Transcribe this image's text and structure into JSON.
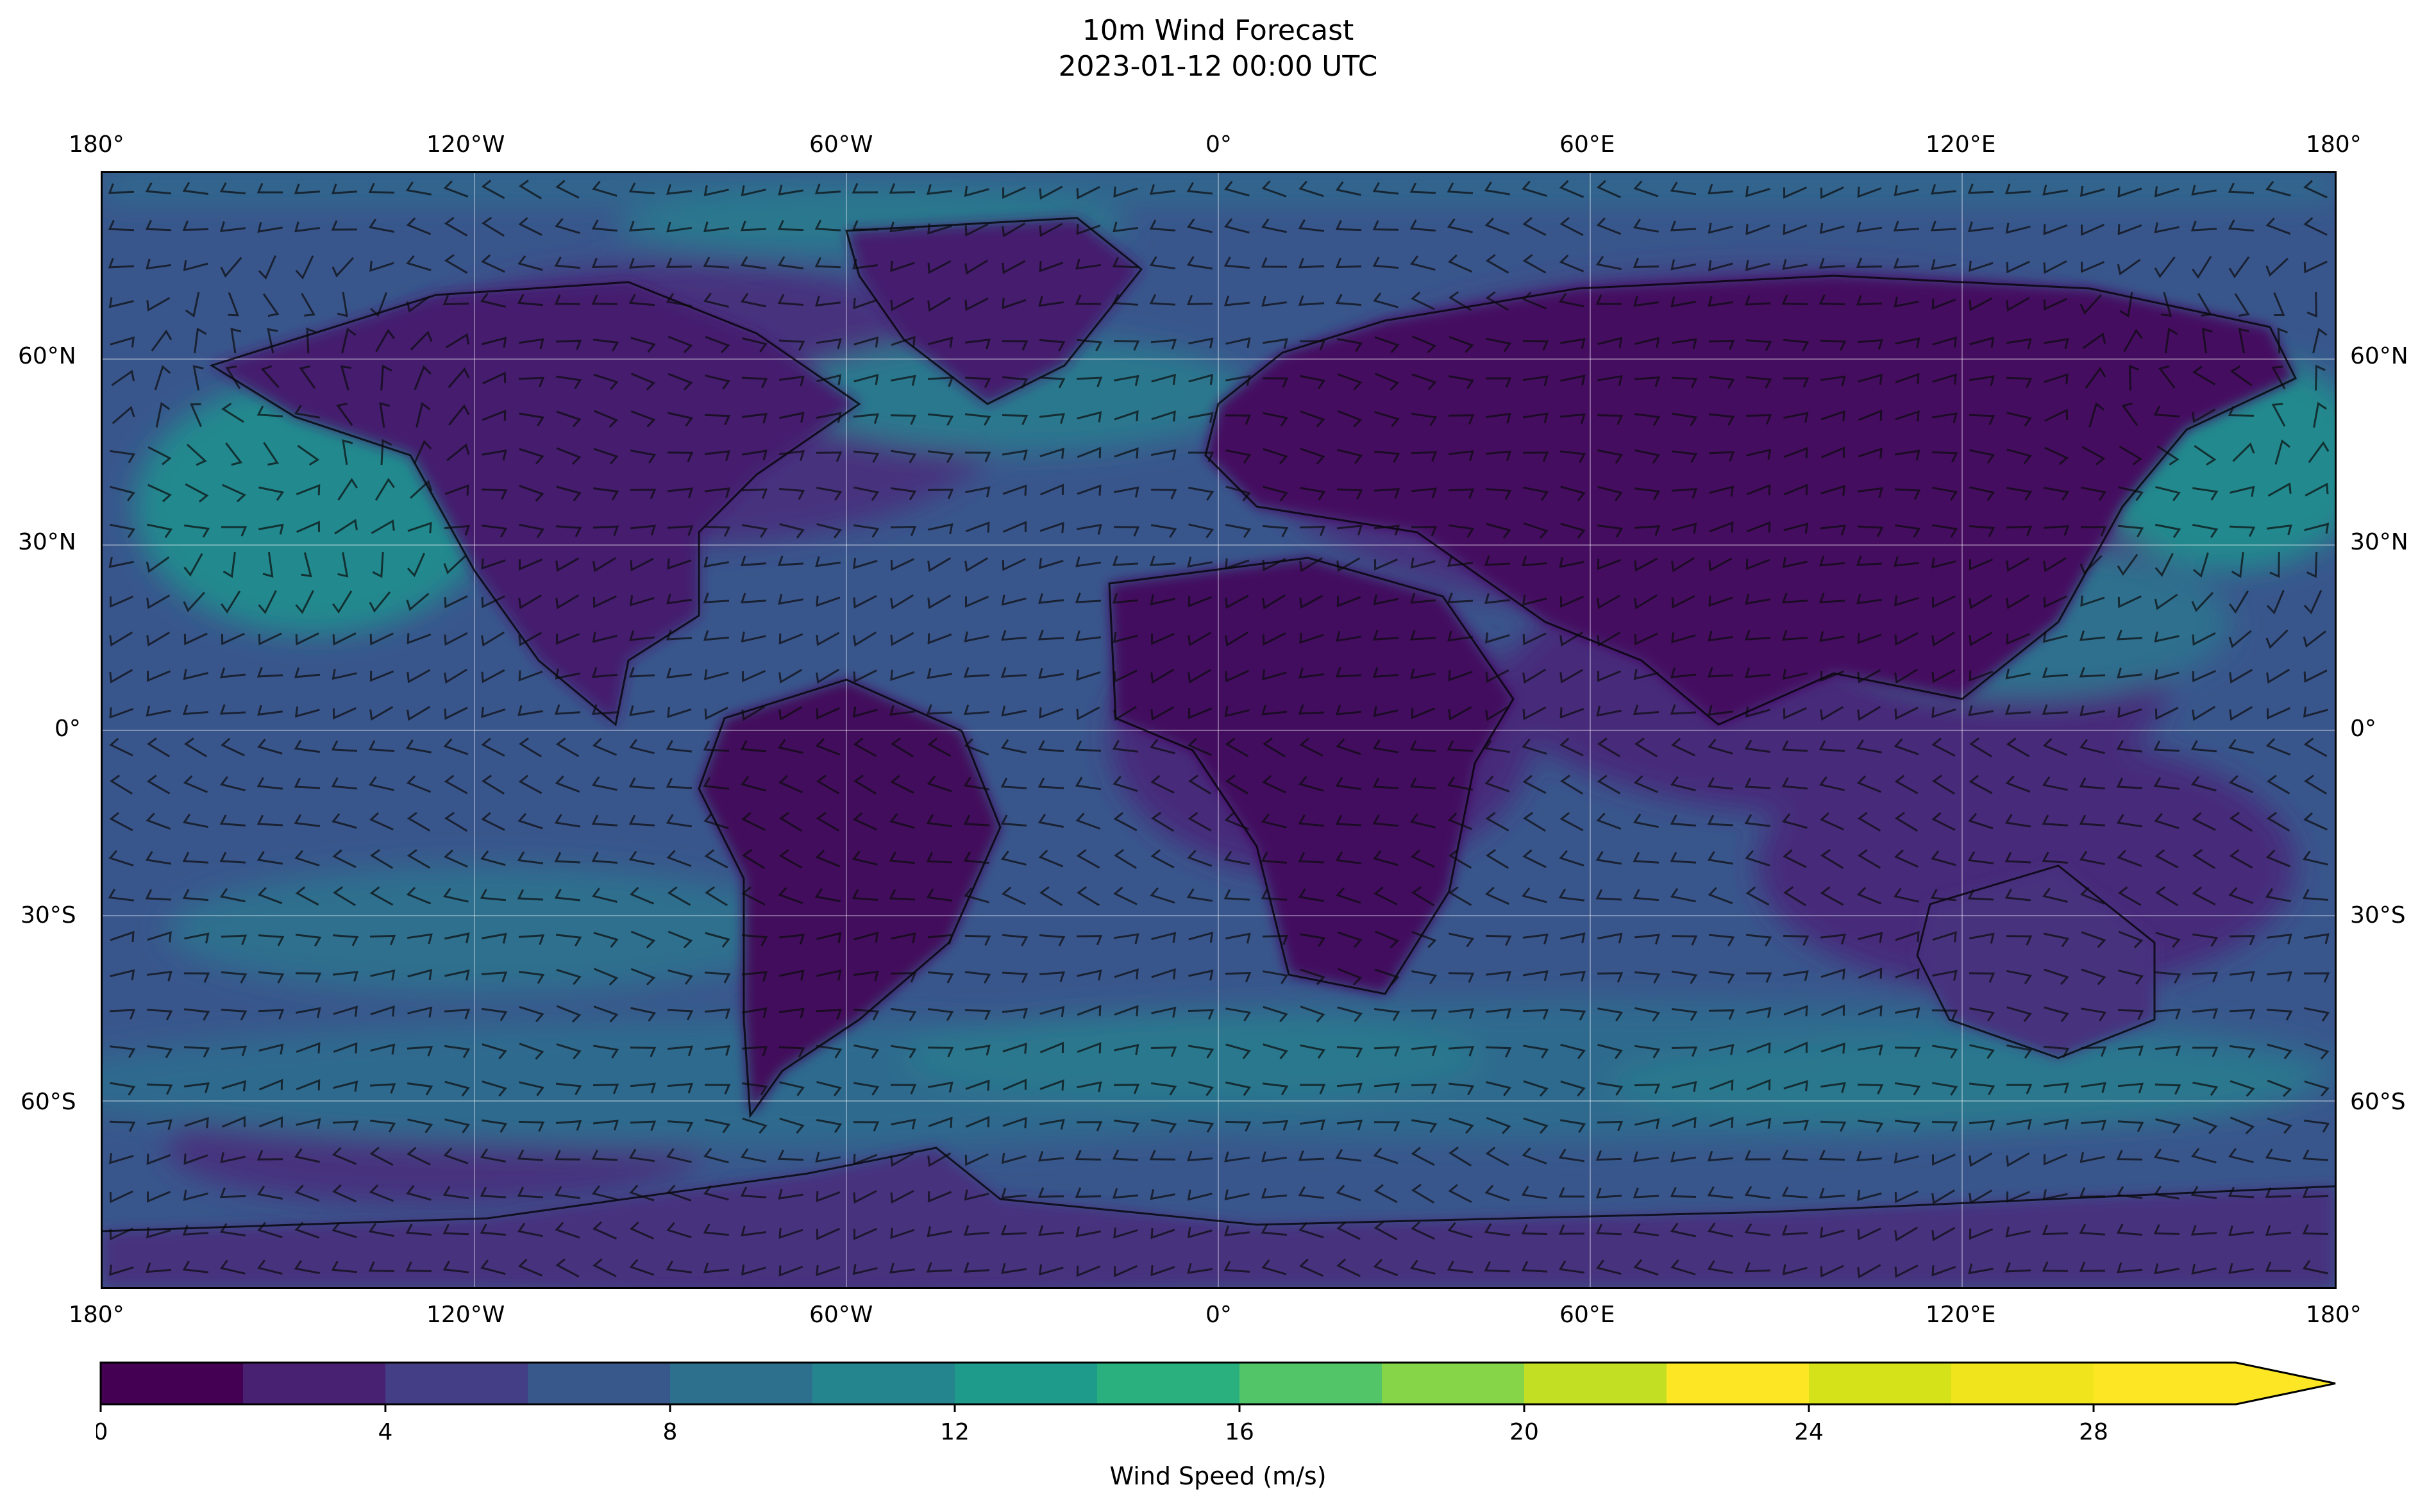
{
  "title": "10m Wind Forecast",
  "subtitle": "2023-01-12 00:00 UTC",
  "longitude_ticks": [
    "180°",
    "120°W",
    "60°W",
    "0°",
    "60°E",
    "120°E",
    "180°"
  ],
  "latitude_ticks": [
    "60°N",
    "30°N",
    "0°",
    "30°S",
    "60°S"
  ],
  "colorbar": {
    "label": "Wind Speed (m/s)",
    "min": 0,
    "max": 30,
    "step": 2,
    "extend": "max",
    "tick_values": [
      0,
      4,
      8,
      12,
      16,
      20,
      24,
      28
    ],
    "tick_labels": [
      "0",
      "4",
      "8",
      "12",
      "16",
      "20",
      "24",
      "28"
    ],
    "colormap": "viridis",
    "colors": [
      "#440154",
      "#482173",
      "#433e85",
      "#38588c",
      "#2d708e",
      "#25858e",
      "#1e9b8a",
      "#2ab07f",
      "#52c569",
      "#86d549",
      "#c2df23",
      "#fde725",
      "#d5e21a",
      "#f0e51c",
      "#fde725"
    ]
  },
  "map": {
    "projection": "PlateCarree",
    "extent": [
      -180,
      180,
      -90,
      90
    ],
    "gridlines": true,
    "features": [
      "coastlines",
      "borders",
      "wind-speed-filled-contours",
      "wind-barbs"
    ]
  }
}
